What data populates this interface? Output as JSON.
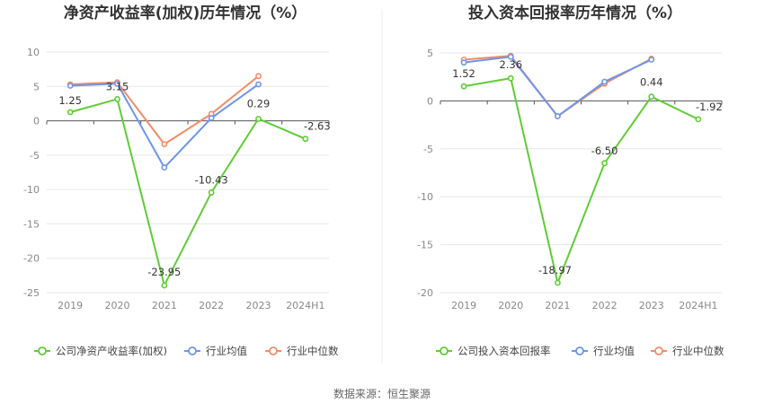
{
  "source": "数据来源：恒生聚源",
  "chart_data": [
    {
      "type": "line",
      "title": "净资产收益率(加权)历年情况（%）",
      "categories": [
        "2019",
        "2020",
        "2021",
        "2022",
        "2023",
        "2024H1"
      ],
      "ylim": [
        -25,
        10
      ],
      "yticks": [
        10,
        5,
        0,
        -5,
        -10,
        -15,
        -20,
        -25
      ],
      "grid": true,
      "legend": "bottom",
      "series": [
        {
          "name": "公司净资产收益率(加权)",
          "color": "#5fcc36",
          "values": [
            1.25,
            3.15,
            -23.95,
            -10.43,
            0.29,
            -2.63
          ],
          "labels": [
            "1.25",
            "3.15",
            "-23.95",
            "-10.43",
            "0.29",
            "-2.63"
          ]
        },
        {
          "name": "行业均值",
          "color": "#6f95e8",
          "values": [
            5.1,
            5.4,
            -6.8,
            0.4,
            5.3,
            null
          ]
        },
        {
          "name": "行业中位数",
          "color": "#f08c68",
          "values": [
            5.3,
            5.6,
            -3.4,
            1.0,
            6.5,
            null
          ]
        }
      ]
    },
    {
      "type": "line",
      "title": "投入资本回报率历年情况（%）",
      "categories": [
        "2019",
        "2020",
        "2021",
        "2022",
        "2023",
        "2024H1"
      ],
      "ylim": [
        -20,
        5
      ],
      "yticks": [
        5,
        0,
        -5,
        -10,
        -15,
        -20
      ],
      "grid": true,
      "legend": "bottom",
      "series": [
        {
          "name": "公司投入资本回报率",
          "color": "#5fcc36",
          "values": [
            1.52,
            2.36,
            -18.97,
            -6.5,
            0.44,
            -1.92
          ],
          "labels": [
            "1.52",
            "2.36",
            "-18.97",
            "-6.50",
            "0.44",
            "-1.92"
          ]
        },
        {
          "name": "行业均值",
          "color": "#6f95e8",
          "values": [
            4.0,
            4.6,
            -1.6,
            2.0,
            4.3,
            null
          ]
        },
        {
          "name": "行业中位数",
          "color": "#f08c68",
          "values": [
            4.3,
            4.7,
            -1.6,
            1.8,
            4.4,
            null
          ]
        }
      ]
    }
  ]
}
